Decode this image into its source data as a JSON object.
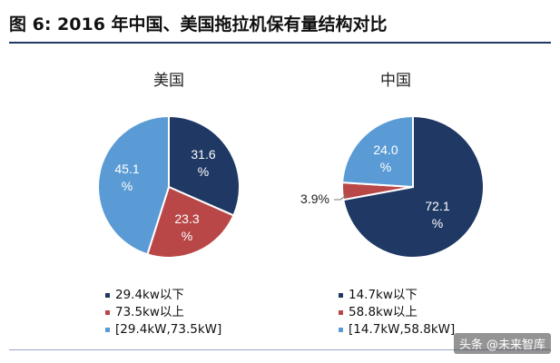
{
  "title": "图 6:  2016 年中国、美国拖拉机保有量结构对比",
  "watermark": "头条 @未来智库",
  "colors": {
    "dark_navy": "#1f3864",
    "red": "#b94747",
    "light_blue": "#5b9bd5",
    "rule": "#1f3864"
  },
  "chart_data": [
    {
      "type": "pie",
      "title": "美国",
      "slices": [
        {
          "label": "29.4kw以下",
          "value": 31.6,
          "text": "31.6\n%",
          "color": "#1f3864"
        },
        {
          "label": "73.5kw以上",
          "value": 23.3,
          "text": "23.3\n%",
          "color": "#b94747"
        },
        {
          "label": "[29.4kW,73.5kW]",
          "value": 45.1,
          "text": "45.1\n%",
          "color": "#5b9bd5"
        }
      ],
      "legend": [
        "29.4kw以下",
        "73.5kw以上",
        "[29.4kW,73.5kW]"
      ]
    },
    {
      "type": "pie",
      "title": "中国",
      "slices": [
        {
          "label": "14.7kw以下",
          "value": 72.1,
          "text": "72.1\n%",
          "color": "#1f3864"
        },
        {
          "label": "58.8kw以上",
          "value": 3.9,
          "text": "3.9%",
          "color": "#b94747"
        },
        {
          "label": "[14.7kW,58.8kW]",
          "value": 24.0,
          "text": "24.0\n%",
          "color": "#5b9bd5"
        }
      ],
      "legend": [
        "14.7kw以下",
        "58.8kw以上",
        "[14.7kW,58.8kW]"
      ]
    }
  ]
}
